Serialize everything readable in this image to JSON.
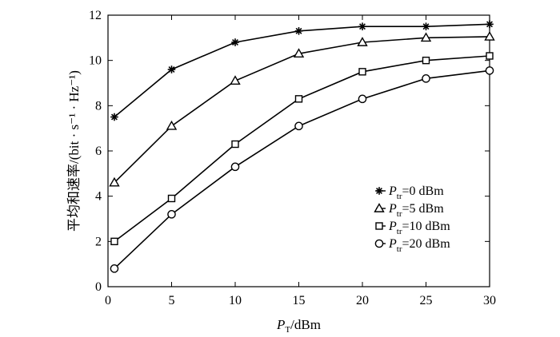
{
  "chart_data": {
    "type": "line",
    "x": [
      0,
      5,
      10,
      15,
      20,
      25,
      30
    ],
    "xlim": [
      0,
      30
    ],
    "ylim": [
      0,
      12
    ],
    "xticks": [
      0,
      5,
      10,
      15,
      20,
      25,
      30
    ],
    "yticks": [
      0,
      2,
      4,
      6,
      8,
      10,
      12
    ],
    "xlabel": {
      "main": "P",
      "sub": "T",
      "rest": "/dBm"
    },
    "ylabel": "平均和速率/(bit · s⁻¹ · Hz⁻¹)",
    "grid": false,
    "legend_position": "bottom-right",
    "series": [
      {
        "name": "P_tr=0 dBm",
        "label_main": "P",
        "label_sub": "tr",
        "label_rest": "=0 dBm",
        "marker": "asterisk",
        "values": [
          7.5,
          9.6,
          10.8,
          11.3,
          11.5,
          11.5,
          11.6
        ]
      },
      {
        "name": "P_tr=5 dBm",
        "label_main": "P",
        "label_sub": "tr",
        "label_rest": "=5 dBm",
        "marker": "triangle",
        "values": [
          4.6,
          7.1,
          9.1,
          10.3,
          10.8,
          11.0,
          11.05
        ]
      },
      {
        "name": "P_tr=10 dBm",
        "label_main": "P",
        "label_sub": "tr",
        "label_rest": "=10 dBm",
        "marker": "square",
        "values": [
          2.0,
          3.9,
          6.3,
          8.3,
          9.5,
          10.0,
          10.2
        ]
      },
      {
        "name": "P_tr=20 dBm",
        "label_main": "P",
        "label_sub": "tr",
        "label_rest": "=20 dBm",
        "marker": "circle",
        "values": [
          0.8,
          3.2,
          5.3,
          7.1,
          8.3,
          9.2,
          9.55
        ]
      }
    ]
  }
}
